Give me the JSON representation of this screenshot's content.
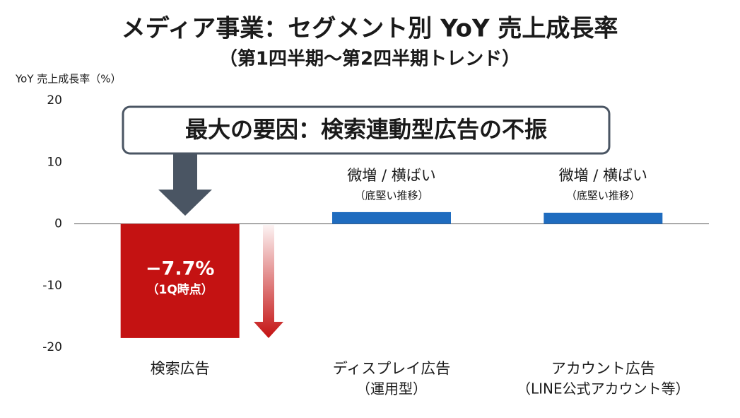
{
  "chart_data": {
    "type": "bar",
    "title": "メディア事業：セグメント別 YoY 売上成長率",
    "subtitle": "（第1四半期〜第2四半期トレンド）",
    "y_axis_label": "YoY 売上成長率（%）",
    "categories": [
      "検索広告",
      "ディスプレイ広告",
      "アカウント広告"
    ],
    "category_sublabels": [
      null,
      "（運用型）",
      "（LINE公式アカウント等）"
    ],
    "values": [
      -18.5,
      1.9,
      1.8
    ],
    "colors": [
      "#c41212",
      "#1f6cbf",
      "#1f6cbf"
    ],
    "bar_annotations": [
      [
        "−7.7%",
        "（1Q時点）"
      ],
      [
        "微増 / 横ばい",
        "（底堅い推移）"
      ],
      [
        "微増 / 横ばい",
        "（底堅い推移）"
      ]
    ],
    "callout": "最大の要因：検索連動型広告の不振",
    "ylim": [
      -20,
      20
    ],
    "yticks": [
      20,
      10,
      0,
      -10,
      -20
    ],
    "grid": false
  }
}
